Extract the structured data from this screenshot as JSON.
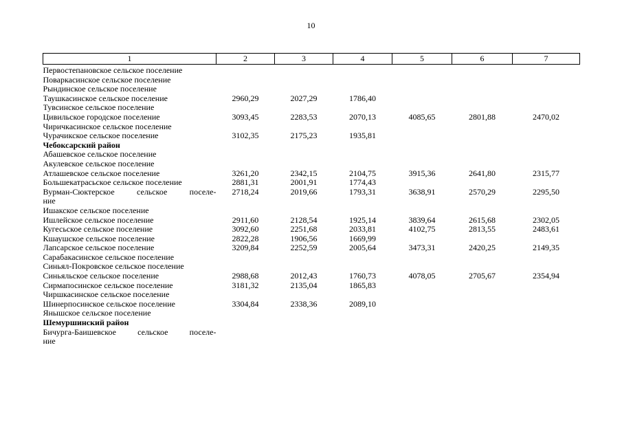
{
  "page": {
    "number": "10"
  },
  "table": {
    "columns": [
      "1",
      "2",
      "3",
      "4",
      "5",
      "6",
      "7"
    ],
    "sections": [
      {
        "district": null,
        "rows": [
          {
            "name": "Первостепановское сельское поселение",
            "values": [
              "",
              "",
              "",
              "",
              "",
              ""
            ]
          },
          {
            "name": "Поваркасинское сельское поселение",
            "values": [
              "",
              "",
              "",
              "",
              "",
              ""
            ]
          },
          {
            "name": "Рындинское сельское поселение",
            "values": [
              "",
              "",
              "",
              "",
              "",
              ""
            ]
          },
          {
            "name": "Таушкасинское сельское поселение",
            "values": [
              "2960,29",
              "2027,29",
              "1786,40",
              "",
              "",
              ""
            ]
          },
          {
            "name": "Тувсинское сельское поселение",
            "values": [
              "",
              "",
              "",
              "",
              "",
              ""
            ]
          },
          {
            "name": "Цивильское городское поселение",
            "values": [
              "3093,45",
              "2283,53",
              "2070,13",
              "4085,65",
              "2801,88",
              "2470,02"
            ]
          },
          {
            "name": "Чиричкасинское сельское поселение",
            "values": [
              "",
              "",
              "",
              "",
              "",
              ""
            ]
          },
          {
            "name": "Чурачикское сельское поселение",
            "values": [
              "3102,35",
              "2175,23",
              "1935,81",
              "",
              "",
              ""
            ]
          }
        ]
      },
      {
        "district": "Чебоксарский район",
        "rows": [
          {
            "name": "Абашевское сельское поселение",
            "values": [
              "",
              "",
              "",
              "",
              "",
              ""
            ]
          },
          {
            "name": "Акулевское сельское поселение",
            "values": [
              "",
              "",
              "",
              "",
              "",
              ""
            ]
          },
          {
            "name": "Атлашевское сельское поселение",
            "values": [
              "3261,20",
              "2342,15",
              "2104,75",
              "3915,36",
              "2641,80",
              "2315,77"
            ]
          },
          {
            "name": "Большекатрасьское сельское поселение",
            "values": [
              "2881,31",
              "2001,91",
              "1774,43",
              "",
              "",
              ""
            ]
          },
          {
            "name": [
              "Вурман-Сюктерское сельское поселе-",
              "ние"
            ],
            "values": [
              "2718,24",
              "2019,66",
              "1793,31",
              "3638,91",
              "2570,29",
              "2295,50"
            ]
          },
          {
            "name": "Ишакское сельское поселение",
            "values": [
              "",
              "",
              "",
              "",
              "",
              ""
            ]
          },
          {
            "name": "Ишлейское сельское поселение",
            "values": [
              "2911,60",
              "2128,54",
              "1925,14",
              "3839,64",
              "2615,68",
              "2302,05"
            ]
          },
          {
            "name": "Кугесьское сельское поселение",
            "values": [
              "3092,60",
              "2251,68",
              "2033,81",
              "4102,75",
              "2813,55",
              "2483,61"
            ]
          },
          {
            "name": "Кшаушское сельское поселение",
            "values": [
              "2822,28",
              "1906,56",
              "1669,99",
              "",
              "",
              ""
            ]
          },
          {
            "name": "Лапсарское сельское поселение",
            "values": [
              "3209,84",
              "2252,59",
              "2005,64",
              "3473,31",
              "2420,25",
              "2149,35"
            ]
          },
          {
            "name": "Сарабакасинское сельское поселение",
            "values": [
              "",
              "",
              "",
              "",
              "",
              ""
            ]
          },
          {
            "name": "Синьял-Покровское сельское поселение",
            "values": [
              "",
              "",
              "",
              "",
              "",
              ""
            ]
          },
          {
            "name": "Синьяльское сельское поселение",
            "values": [
              "2988,68",
              "2012,43",
              "1760,73",
              "4078,05",
              "2705,67",
              "2354,94"
            ]
          },
          {
            "name": "Сирмапосинское сельское поселение",
            "values": [
              "3181,32",
              "2135,04",
              "1865,83",
              "",
              "",
              ""
            ]
          },
          {
            "name": "Чиршкасинское сельское поселение",
            "values": [
              "",
              "",
              "",
              "",
              "",
              ""
            ]
          },
          {
            "name": "Шинерпосинское сельское поселение",
            "values": [
              "3304,84",
              "2338,36",
              "2089,10",
              "",
              "",
              ""
            ]
          },
          {
            "name": "Янышское сельское поселение",
            "values": [
              "",
              "",
              "",
              "",
              "",
              ""
            ]
          }
        ]
      },
      {
        "district": "Шемуршинский район",
        "rows": [
          {
            "name": [
              "Бичурга-Баишевское сельское поселе-",
              "ние"
            ],
            "values": [
              "",
              "",
              "",
              "",
              "",
              ""
            ]
          }
        ]
      }
    ]
  }
}
